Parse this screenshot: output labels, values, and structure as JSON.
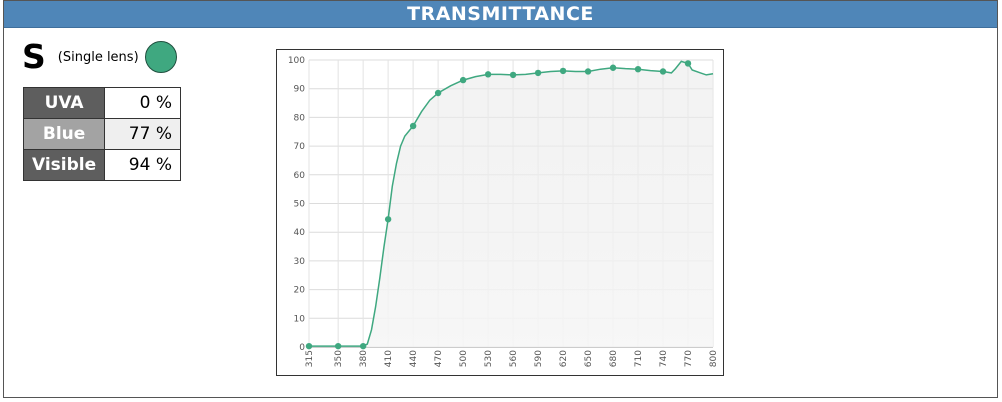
{
  "header": {
    "title": "TRANSMITTANCE"
  },
  "lens": {
    "code": "S",
    "description": "(Single lens)",
    "color": "#3fa880"
  },
  "stats": [
    {
      "label": "UVA",
      "value": "0 %"
    },
    {
      "label": "Blue",
      "value": "77 %"
    },
    {
      "label": "Visible",
      "value": "94 %"
    }
  ],
  "chart_data": {
    "type": "line",
    "title": "",
    "xlabel": "",
    "ylabel": "",
    "x_ticks": [
      315,
      350,
      380,
      410,
      440,
      470,
      500,
      530,
      560,
      590,
      620,
      650,
      680,
      710,
      740,
      770,
      800
    ],
    "y_ticks": [
      0,
      10,
      20,
      30,
      40,
      50,
      60,
      70,
      80,
      90,
      100
    ],
    "xlim": [
      315,
      800
    ],
    "ylim": [
      0,
      100
    ],
    "grid": true,
    "series": [
      {
        "color": "#3fa880",
        "curve": [
          [
            315,
            0.3
          ],
          [
            350,
            0.3
          ],
          [
            380,
            0.3
          ],
          [
            385,
            1
          ],
          [
            390,
            6
          ],
          [
            395,
            14
          ],
          [
            400,
            24
          ],
          [
            405,
            35
          ],
          [
            410,
            44.5
          ],
          [
            415,
            56
          ],
          [
            420,
            64
          ],
          [
            425,
            70
          ],
          [
            430,
            73.5
          ],
          [
            440,
            77
          ],
          [
            450,
            82
          ],
          [
            460,
            86
          ],
          [
            470,
            88.5
          ],
          [
            485,
            91
          ],
          [
            500,
            93
          ],
          [
            515,
            94.2
          ],
          [
            530,
            95
          ],
          [
            545,
            95
          ],
          [
            560,
            94.8
          ],
          [
            575,
            95
          ],
          [
            590,
            95.5
          ],
          [
            605,
            96
          ],
          [
            620,
            96.2
          ],
          [
            635,
            96
          ],
          [
            650,
            96
          ],
          [
            665,
            96.8
          ],
          [
            680,
            97.3
          ],
          [
            695,
            97
          ],
          [
            710,
            96.8
          ],
          [
            725,
            96.3
          ],
          [
            740,
            96
          ],
          [
            750,
            95.5
          ],
          [
            755,
            97
          ],
          [
            762,
            99.5
          ],
          [
            770,
            98.8
          ],
          [
            775,
            96.5
          ],
          [
            785,
            95.5
          ],
          [
            792,
            94.8
          ],
          [
            800,
            95.2
          ]
        ],
        "points": [
          [
            315,
            0.3
          ],
          [
            350,
            0.3
          ],
          [
            380,
            0.3
          ],
          [
            410,
            44.5
          ],
          [
            440,
            77
          ],
          [
            470,
            88.5
          ],
          [
            500,
            93
          ],
          [
            530,
            95
          ],
          [
            560,
            94.8
          ],
          [
            590,
            95.5
          ],
          [
            620,
            96.2
          ],
          [
            650,
            96
          ],
          [
            680,
            97.3
          ],
          [
            710,
            96.8
          ],
          [
            740,
            96
          ],
          [
            770,
            98.8
          ]
        ]
      }
    ]
  }
}
